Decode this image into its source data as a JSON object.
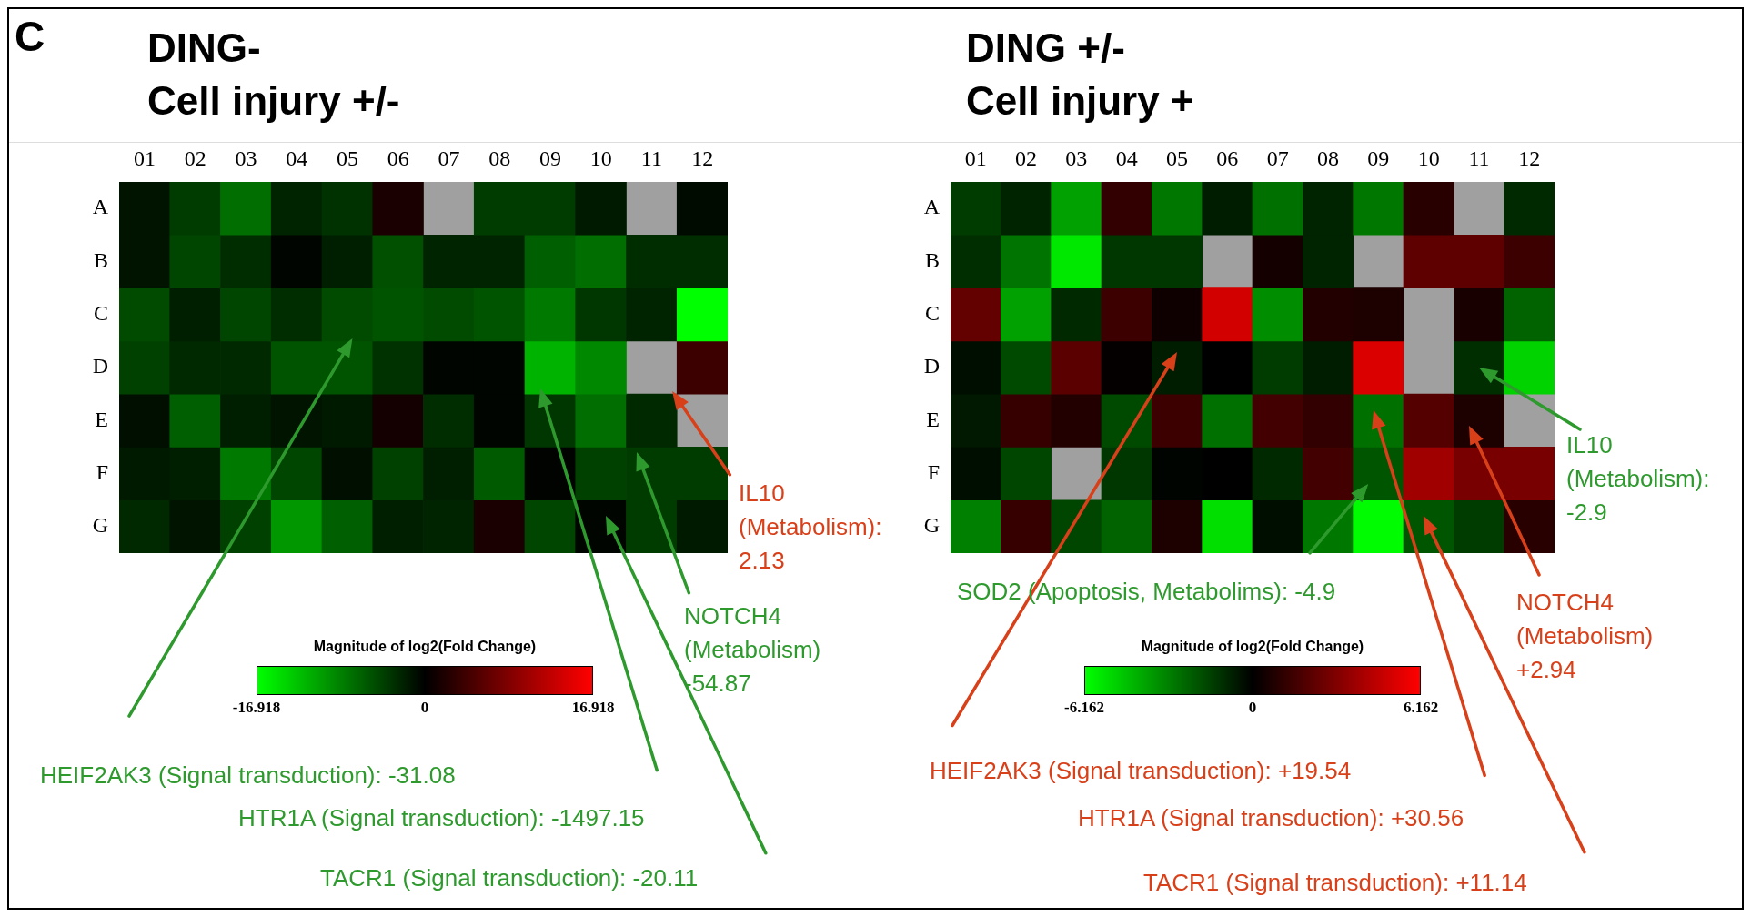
{
  "chart_data": [
    {
      "type": "heatmap",
      "title": "DING-\nCell injury +/-",
      "categories": [
        "01",
        "02",
        "03",
        "04",
        "05",
        "06",
        "07",
        "08",
        "09",
        "10",
        "11",
        "12"
      ],
      "y_categories": [
        "A",
        "B",
        "C",
        "D",
        "E",
        "F",
        "G"
      ],
      "cells": [
        [
          -1.3,
          -4,
          -7.3,
          -2.3,
          -3.3,
          1.7,
          null,
          -4,
          -4,
          -1.7,
          null,
          -0.7
        ],
        [
          -1.3,
          -4.6,
          -3,
          -0.3,
          -2,
          -5.3,
          -2.3,
          -2.3,
          -6.3,
          -7.3,
          -3,
          -3
        ],
        [
          -5,
          -2,
          -4.6,
          -3,
          -5,
          -5.6,
          -5,
          -5.6,
          -8,
          -3.6,
          -2.3,
          -16.9
        ],
        [
          -4.3,
          -2.7,
          -2.7,
          -5.6,
          -5.6,
          -3.3,
          -0.3,
          -0.3,
          -11.9,
          -9,
          null,
          4
        ],
        [
          -1,
          -6.3,
          -2,
          -1.3,
          -1.7,
          1.3,
          -3,
          -0.3,
          -3.6,
          -7.3,
          -2.7,
          null
        ],
        [
          -1.7,
          -2,
          -8,
          -4.6,
          -1,
          -4.3,
          -2,
          -6,
          -0.2,
          -4.3,
          -4,
          -4
        ],
        [
          -2.7,
          -1.3,
          -4.3,
          -10,
          -6.3,
          -2,
          -2.3,
          1.7,
          -4.6,
          -0.3,
          -4,
          -1.7
        ]
      ],
      "clim": [
        -16.918,
        16.918
      ],
      "cticks": [
        -16.918,
        0,
        16.918
      ],
      "clabel": "Magnitude of log2(Fold Change)",
      "annotations": [
        "C",
        "HEIF2AK3 (Signal transduction): -31.08",
        "HTR1A (Signal transduction): -1497.15",
        "TACR1 (Signal transduction): -20.11",
        "NOTCH4\n(Metabolism)\n-54.87",
        "IL10\n(Metabolism):\n2.13"
      ]
    },
    {
      "type": "heatmap",
      "title": "DING +/-\nCell injury +",
      "categories": [
        "01",
        "02",
        "03",
        "04",
        "05",
        "06",
        "07",
        "08",
        "09",
        "10",
        "11",
        "12"
      ],
      "y_categories": [
        "A",
        "B",
        "C",
        "D",
        "E",
        "F",
        "G"
      ],
      "cells": [
        [
          -1.45,
          -0.85,
          -3.9,
          1.2,
          -2.9,
          -0.7,
          -2.7,
          -0.85,
          -2.9,
          1,
          null,
          -1
        ],
        [
          -1.1,
          -2.8,
          -5.6,
          -1.3,
          -1.3,
          null,
          0.5,
          -0.85,
          null,
          2.3,
          2.3,
          1.45
        ],
        [
          2.4,
          -3.9,
          -1,
          1.45,
          0.35,
          5.1,
          -3.4,
          0.85,
          0.7,
          null,
          0.6,
          -2.4
        ],
        [
          -0.35,
          -1.8,
          2.2,
          0.1,
          -0.7,
          0,
          -1.45,
          -0.7,
          5.3,
          null,
          -1.1,
          -5.1
        ],
        [
          -0.6,
          1.3,
          0.85,
          -1.8,
          1.45,
          -2.7,
          1.6,
          1.2,
          -2.7,
          2.05,
          0.7,
          null
        ],
        [
          -0.35,
          -1.7,
          null,
          -1.3,
          -0.1,
          0,
          -1,
          1.6,
          -2.05,
          3.9,
          2.9,
          2.9
        ],
        [
          -3.1,
          1.3,
          -1.7,
          -2.4,
          0.7,
          -5.4,
          -0.35,
          -2.9,
          -6.1,
          -2.05,
          -1.45,
          1
        ]
      ],
      "clim": [
        -6.162,
        6.162
      ],
      "cticks": [
        -6.162,
        0,
        6.162
      ],
      "clabel": "Magnitude of log2(Fold Change)",
      "annotations": [
        "HEIF2AK3 (Signal transduction): +19.54",
        "HTR1A (Signal transduction): +30.56",
        "TACR1 (Signal transduction): +11.14",
        "SOD2 (Apoptosis, Metabolims): -4.9",
        "NOTCH4\n(Metabolism)\n+2.94",
        "IL10\n(Metabolism):\n-2.9"
      ]
    }
  ]
}
